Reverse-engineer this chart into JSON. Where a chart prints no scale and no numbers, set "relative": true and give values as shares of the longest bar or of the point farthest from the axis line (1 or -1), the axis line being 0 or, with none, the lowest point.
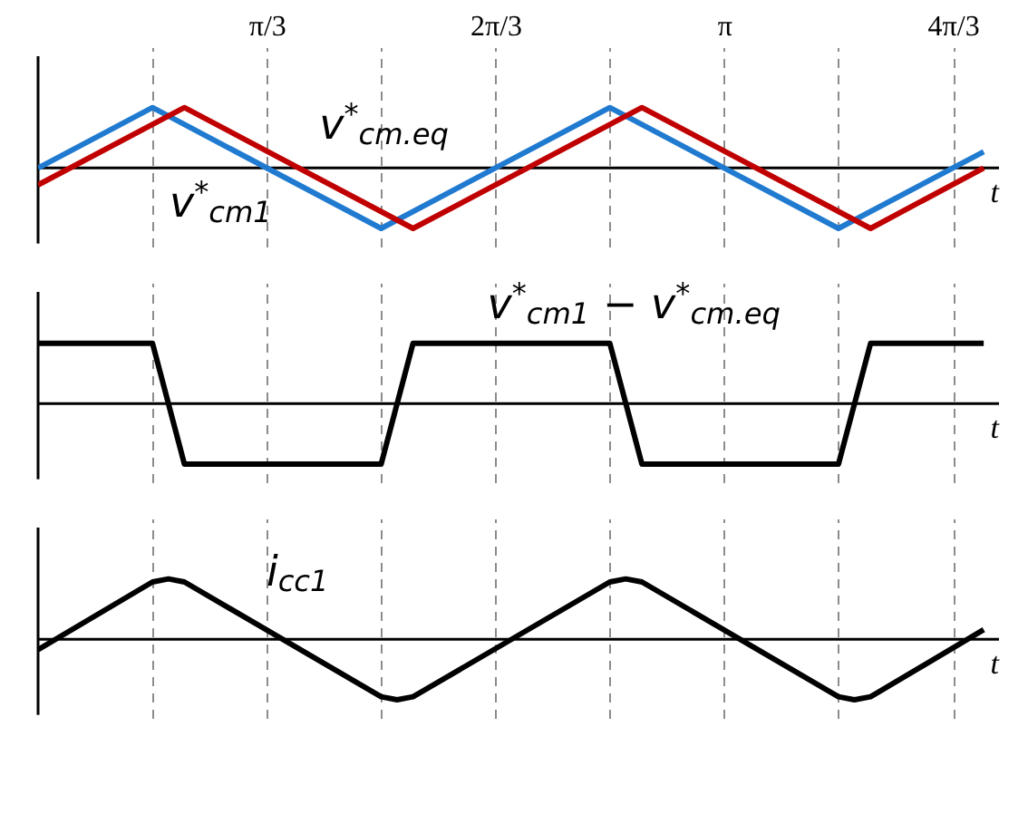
{
  "chart_data": [
    {
      "type": "line",
      "relative": true,
      "xlabel": "t",
      "grid": "x",
      "tick_labels": "x",
      "xlim": [
        0,
        4.4
      ],
      "xticks": [
        {
          "value": 0.5236,
          "label": null
        },
        {
          "value": 1.0472,
          "label": "π/3"
        },
        {
          "value": 1.5708,
          "label": null
        },
        {
          "value": 2.0944,
          "label": "2π/3"
        },
        {
          "value": 2.618,
          "label": null
        },
        {
          "value": 3.1416,
          "label": "π"
        },
        {
          "value": 3.6652,
          "label": null
        },
        {
          "value": 4.1888,
          "label": "4π/3"
        }
      ],
      "series": [
        {
          "name": "v$^{*}$$_{cm1}$",
          "color": "#1f7ad0",
          "x": [
            0,
            0.524,
            1.571,
            2.618,
            3.665,
            4.33
          ],
          "values": [
            0,
            1,
            -1,
            1,
            -1,
            0.27
          ]
        },
        {
          "name": "v$^{*}$$_{cm.eq}$",
          "color": "#c00000",
          "x": [
            0,
            0.67,
            1.717,
            2.765,
            3.812,
            4.33
          ],
          "values": [
            -0.28,
            1,
            -1,
            1,
            -1,
            0
          ]
        }
      ]
    },
    {
      "type": "line",
      "relative": true,
      "xlabel": "t",
      "grid": "x",
      "tick_labels": false,
      "xlim": [
        0,
        4.4
      ],
      "xticks": [
        0.5236,
        1.0472,
        1.5708,
        2.0944,
        2.618,
        3.1416,
        3.6652,
        4.1888
      ],
      "series": [
        {
          "name": "v$^{*}$$_{cm1}$ − v$^{*}$$_{cm.eq}$",
          "color": "#000000",
          "x": [
            0,
            0.524,
            0.67,
            1.571,
            1.717,
            2.618,
            2.765,
            3.665,
            3.812,
            4.33
          ],
          "values": [
            1,
            1,
            -1,
            -1,
            1,
            1,
            -1,
            -1,
            1,
            1
          ]
        }
      ]
    },
    {
      "type": "line",
      "relative": true,
      "xlabel": "t",
      "grid": "x",
      "tick_labels": false,
      "xlim": [
        0,
        4.4
      ],
      "xticks": [
        0.5236,
        1.0472,
        1.5708,
        2.0944,
        2.618,
        3.1416,
        3.6652,
        4.1888
      ],
      "series": [
        {
          "name": "i$_{cc1}$",
          "color": "#000000",
          "x": [
            0,
            0.524,
            0.597,
            0.67,
            1.571,
            1.644,
            1.717,
            2.618,
            2.691,
            2.765,
            3.665,
            3.738,
            3.812,
            4.33
          ],
          "values": [
            -0.17,
            0.95,
            1,
            0.95,
            -0.95,
            -1,
            -0.95,
            0.95,
            1,
            0.95,
            -0.95,
            -1,
            -0.95,
            0.16
          ]
        }
      ]
    }
  ]
}
